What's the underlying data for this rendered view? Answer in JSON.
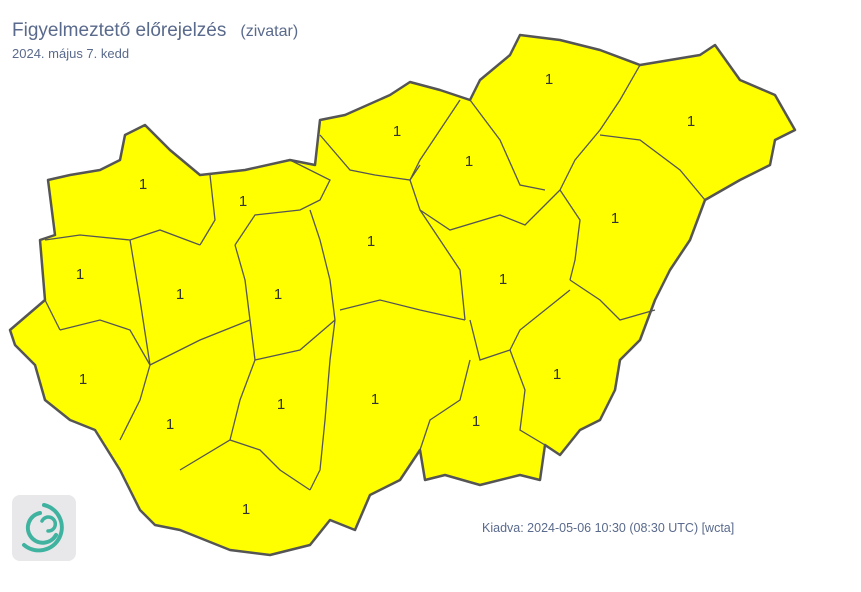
{
  "header": {
    "title": "Figyelmeztető előrejelzés",
    "subtitle": "(zivatar)",
    "date": "2024. május 7. kedd"
  },
  "map": {
    "fill_color": "#ffff00",
    "border_color": "#555555",
    "county_levels": [
      "1",
      "1",
      "1",
      "1",
      "1",
      "1",
      "1",
      "1",
      "1",
      "1",
      "1",
      "1",
      "1",
      "1",
      "1",
      "1",
      "1",
      "1",
      "1"
    ]
  },
  "footer": {
    "issued": "Kiadva: 2024-05-06 10:30 (08:30 UTC) [wcta]",
    "logo_icon": "met-service-spiral-logo"
  }
}
